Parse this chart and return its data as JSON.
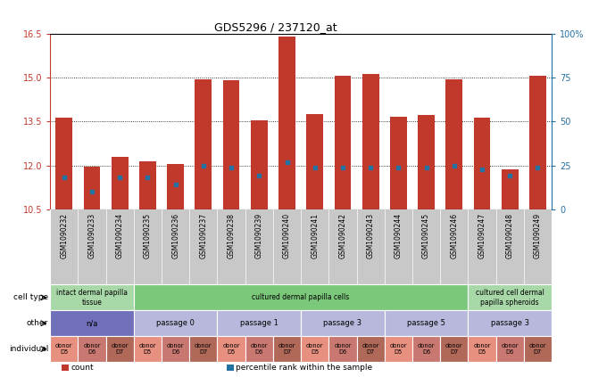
{
  "title": "GDS5296 / 237120_at",
  "samples": [
    "GSM1090232",
    "GSM1090233",
    "GSM1090234",
    "GSM1090235",
    "GSM1090236",
    "GSM1090237",
    "GSM1090238",
    "GSM1090239",
    "GSM1090240",
    "GSM1090241",
    "GSM1090242",
    "GSM1090243",
    "GSM1090244",
    "GSM1090245",
    "GSM1090246",
    "GSM1090247",
    "GSM1090248",
    "GSM1090249"
  ],
  "count_values": [
    13.65,
    11.95,
    12.3,
    12.15,
    12.05,
    14.95,
    14.92,
    13.55,
    16.42,
    13.75,
    15.08,
    15.12,
    13.68,
    13.72,
    14.95,
    13.62,
    11.88,
    15.07
  ],
  "percentile_values": [
    18,
    10,
    18,
    18,
    14,
    25,
    24,
    19,
    27,
    24,
    24,
    24,
    24,
    24,
    25,
    23,
    19,
    24
  ],
  "ylim_left": [
    10.5,
    16.5
  ],
  "ylim_right": [
    0,
    100
  ],
  "yticks_left": [
    10.5,
    12.0,
    13.5,
    15.0,
    16.5
  ],
  "yticks_right": [
    0,
    25,
    50,
    75,
    100
  ],
  "grid_lines": [
    12.0,
    13.5,
    15.0
  ],
  "bar_color": "#C0392B",
  "dot_color": "#2471A3",
  "bar_width": 0.6,
  "cell_type_groups": [
    {
      "label": "intact dermal papilla\ntissue",
      "start": 0,
      "end": 3,
      "color": "#A8D8A8"
    },
    {
      "label": "cultured dermal papilla cells",
      "start": 3,
      "end": 15,
      "color": "#7BC87B"
    },
    {
      "label": "cultured cell dermal\npapilla spheroids",
      "start": 15,
      "end": 18,
      "color": "#A8D8A8"
    }
  ],
  "other_groups": [
    {
      "label": "n/a",
      "start": 0,
      "end": 3,
      "color": "#7070BB"
    },
    {
      "label": "passage 0",
      "start": 3,
      "end": 6,
      "color": "#B8B8DD"
    },
    {
      "label": "passage 1",
      "start": 6,
      "end": 9,
      "color": "#B8B8DD"
    },
    {
      "label": "passage 3",
      "start": 9,
      "end": 12,
      "color": "#B8B8DD"
    },
    {
      "label": "passage 5",
      "start": 12,
      "end": 15,
      "color": "#B8B8DD"
    },
    {
      "label": "passage 3",
      "start": 15,
      "end": 18,
      "color": "#B8B8DD"
    }
  ],
  "individual_colors": [
    "#E89080",
    "#C87870",
    "#B06858"
  ],
  "row_labels": [
    "cell type",
    "other",
    "individual"
  ],
  "legend_items": [
    {
      "label": "count",
      "color": "#C0392B"
    },
    {
      "label": "percentile rank within the sample",
      "color": "#2471A3"
    }
  ],
  "sample_bg_color": "#C8C8C8",
  "bg_color": "#FFFFFF",
  "axis_color_left": "#C0392B",
  "axis_color_right": "#2471A3"
}
